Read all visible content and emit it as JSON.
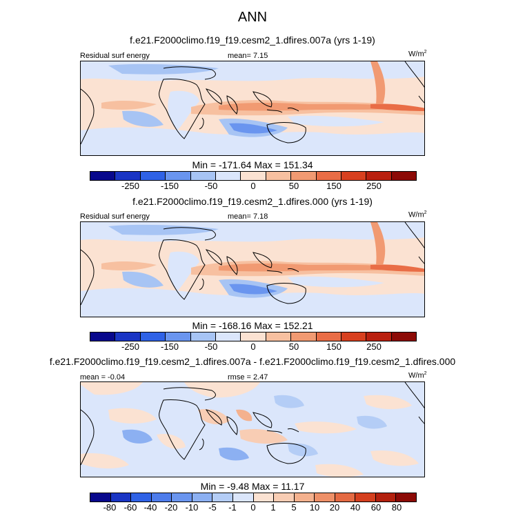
{
  "figure": {
    "title": "ANN",
    "units_base": "W/m",
    "units_exp": "2"
  },
  "colors": {
    "main_scale": [
      "#08088c",
      "#1a35c4",
      "#2f62e6",
      "#6a95ef",
      "#a7c4f4",
      "#dbe6fb",
      "#fbe2d2",
      "#f7c0a0",
      "#f19a72",
      "#e96d46",
      "#d8401f",
      "#b9200f",
      "#8c0a06"
    ],
    "diff_scale": [
      "#08088c",
      "#1a35c4",
      "#2f62e6",
      "#4d7ceb",
      "#6a95ef",
      "#8cb0f2",
      "#b4cdf6",
      "#dbe6fb",
      "#fbe2d2",
      "#f8cdb4",
      "#f4b18e",
      "#ee9068",
      "#e46a43",
      "#d43f1e",
      "#b3200e",
      "#8c0a06"
    ],
    "ocean_base": "#fbe2d2",
    "diff_base": "#dbe6fb",
    "coast": "#000000"
  },
  "panels": [
    {
      "title": "f.e21.F2000climo.f19_f19.cesm2_1.dfires.007a (yrs 1-19)",
      "left_label": "Residual surf energy",
      "center_label": "mean=  7.15",
      "minmax": "Min = -171.64 Max = 151.34",
      "ticks": [
        "-250",
        "-150",
        "-50",
        "0",
        "50",
        "150",
        "250"
      ]
    },
    {
      "title": "f.e21.F2000climo.f19_f19.cesm2_1.dfires.000 (yrs 1-19)",
      "left_label": "Residual surf energy",
      "center_label": "mean=  7.18",
      "minmax": "Min = -168.16 Max = 152.21",
      "ticks": [
        "-250",
        "-150",
        "-50",
        "0",
        "50",
        "150",
        "250"
      ]
    },
    {
      "title": "f.e21.F2000climo.f19_f19.cesm2_1.dfires.007a - f.e21.F2000climo.f19_f19.cesm2_1.dfires.000",
      "left_label": "mean = -0.04",
      "center_label": "rmse =  2.47",
      "minmax": "Min =  -9.48 Max = 11.17",
      "ticks": [
        "-80",
        "-60",
        "-40",
        "-20",
        "-10",
        "-5",
        "-1",
        "0",
        "1",
        "5",
        "10",
        "20",
        "40",
        "60",
        "80"
      ]
    }
  ],
  "chart_data": [
    {
      "type": "heatmap",
      "title": "f.e21.F2000climo.f19_f19.cesm2_1.dfires.007a (yrs 1-19)",
      "variable": "Residual surf energy",
      "units": "W/m2",
      "mean": 7.15,
      "min": -171.64,
      "max": 151.34,
      "levels": [
        -300,
        -250,
        -200,
        -150,
        -100,
        -50,
        0,
        50,
        100,
        150,
        200,
        250,
        300
      ]
    },
    {
      "type": "heatmap",
      "title": "f.e21.F2000climo.f19_f19.cesm2_1.dfires.000 (yrs 1-19)",
      "variable": "Residual surf energy",
      "units": "W/m2",
      "mean": 7.18,
      "min": -168.16,
      "max": 152.21,
      "levels": [
        -300,
        -250,
        -200,
        -150,
        -100,
        -50,
        0,
        50,
        100,
        150,
        200,
        250,
        300
      ]
    },
    {
      "type": "heatmap",
      "title": "f.e21.F2000climo.f19_f19.cesm2_1.dfires.007a - f.e21.F2000climo.f19_f19.cesm2_1.dfires.000",
      "units": "W/m2",
      "mean": -0.04,
      "rmse": 2.47,
      "min": -9.48,
      "max": 11.17,
      "levels": [
        -80,
        -60,
        -40,
        -20,
        -10,
        -5,
        -1,
        0,
        1,
        5,
        10,
        20,
        40,
        60,
        80
      ]
    }
  ]
}
